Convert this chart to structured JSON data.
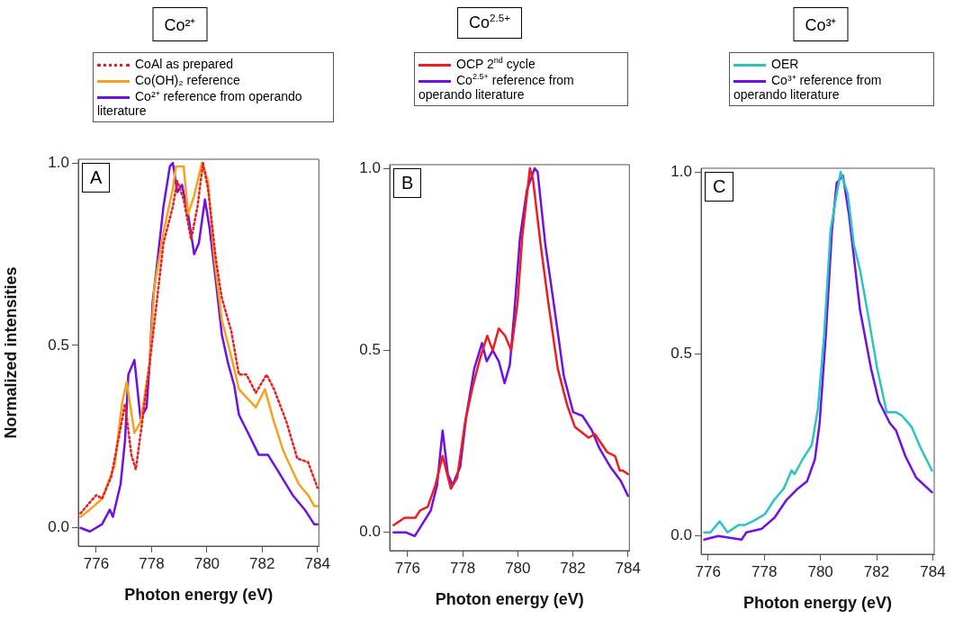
{
  "chart_data": [
    {
      "type": "line",
      "title": "Co²⁺",
      "xlabel": "Photon energy (eV)",
      "ylabel": "Normalized intensities",
      "annotations": [
        "A"
      ],
      "legend": "top",
      "grid": false,
      "marker": "none",
      "xlim": [
        775.35,
        784.05
      ],
      "ylim": [
        -0.05,
        1.01
      ],
      "xticks": [
        776,
        778,
        780,
        782,
        784
      ],
      "yticks": [
        {
          "value": 0,
          "label": "0.0"
        },
        {
          "value": 0.5,
          "label": "0.5"
        },
        {
          "value": 1,
          "label": "1.0"
        }
      ],
      "series": [
        {
          "name": "CoAl as prepared",
          "color": "#ee1c1c",
          "line_style": "dotted",
          "x": [
            775.43,
            776.0,
            776.21,
            776.54,
            776.82,
            777.04,
            777.27,
            777.43,
            777.66,
            777.93,
            778.16,
            778.43,
            778.77,
            778.93,
            779.16,
            779.43,
            779.66,
            779.86,
            780.04,
            780.32,
            780.54,
            780.88,
            781.16,
            781.43,
            781.77,
            782.16,
            782.43,
            782.88,
            783.27,
            783.66,
            784.0
          ],
          "values": [
            0.04,
            0.09,
            0.08,
            0.14,
            0.25,
            0.34,
            0.2,
            0.16,
            0.29,
            0.45,
            0.6,
            0.78,
            0.88,
            0.95,
            0.9,
            0.79,
            0.88,
            1.0,
            0.93,
            0.74,
            0.63,
            0.54,
            0.42,
            0.42,
            0.37,
            0.42,
            0.38,
            0.29,
            0.19,
            0.18,
            0.11
          ]
        },
        {
          "name": "Co(OH)₂ reference",
          "color": "#f7a21b",
          "line_style": "solid",
          "x": [
            775.43,
            775.77,
            776.21,
            776.66,
            776.93,
            777.1,
            777.38,
            777.6,
            777.93,
            778.1,
            778.43,
            778.77,
            778.88,
            779.16,
            779.32,
            779.54,
            779.82,
            780.04,
            780.27,
            780.54,
            780.88,
            781.16,
            781.77,
            782.1,
            782.43,
            782.77,
            783.32,
            783.66,
            783.88,
            784.0
          ],
          "values": [
            0.03,
            0.05,
            0.08,
            0.17,
            0.34,
            0.4,
            0.26,
            0.29,
            0.45,
            0.66,
            0.81,
            0.93,
            0.99,
            0.99,
            0.86,
            0.91,
            1.0,
            0.95,
            0.74,
            0.57,
            0.47,
            0.38,
            0.33,
            0.38,
            0.29,
            0.21,
            0.12,
            0.09,
            0.06,
            0.06
          ]
        },
        {
          "name": "Co²⁺ reference from operando literature",
          "color": "#6e10e6",
          "line_style": "solid",
          "x": [
            775.43,
            775.77,
            776.21,
            776.49,
            776.6,
            776.88,
            777.04,
            777.16,
            777.38,
            777.6,
            777.82,
            777.93,
            778.04,
            778.21,
            778.43,
            778.66,
            778.77,
            778.93,
            779.1,
            779.32,
            779.54,
            779.71,
            779.93,
            780.1,
            780.32,
            780.54,
            780.77,
            780.99,
            781.16,
            781.49,
            781.88,
            782.21,
            782.54,
            783.1,
            783.54,
            783.88,
            784.0
          ],
          "values": [
            0.0,
            -0.01,
            0.01,
            0.05,
            0.03,
            0.12,
            0.24,
            0.42,
            0.46,
            0.3,
            0.33,
            0.45,
            0.62,
            0.73,
            0.88,
            0.99,
            1.0,
            0.92,
            0.94,
            0.86,
            0.75,
            0.78,
            0.9,
            0.82,
            0.68,
            0.53,
            0.45,
            0.39,
            0.31,
            0.26,
            0.2,
            0.2,
            0.16,
            0.09,
            0.05,
            0.01,
            0.01
          ]
        }
      ]
    },
    {
      "type": "line",
      "title": "Co$^{2.5+}$",
      "xlabel": "Photon energy (eV)",
      "annotations": [
        "B"
      ],
      "legend": "top",
      "grid": false,
      "marker": "none",
      "xlim": [
        775.35,
        784.05
      ],
      "ylim": [
        -0.05,
        1.01
      ],
      "xticks": [
        776,
        778,
        780,
        782,
        784
      ],
      "yticks": [
        {
          "value": 0,
          "label": "0.0"
        },
        {
          "value": 0.5,
          "label": "0.5"
        },
        {
          "value": 1,
          "label": "1.0"
        }
      ],
      "series": [
        {
          "name": "OCP 2$^{nd}$ cycle",
          "color": "#ee1c1c",
          "line_style": "solid",
          "x": [
            775.49,
            775.89,
            776.28,
            776.45,
            776.73,
            777.01,
            777.27,
            777.57,
            777.8,
            778.08,
            778.36,
            778.64,
            778.89,
            779.09,
            779.31,
            779.54,
            779.76,
            779.99,
            780.16,
            780.44,
            780.55,
            780.83,
            781.11,
            781.45,
            781.79,
            782.07,
            782.57,
            782.8,
            783.25,
            783.53,
            783.7,
            783.81,
            784.0
          ],
          "values": [
            0.02,
            0.04,
            0.04,
            0.06,
            0.07,
            0.13,
            0.21,
            0.12,
            0.15,
            0.3,
            0.4,
            0.48,
            0.54,
            0.5,
            0.56,
            0.54,
            0.5,
            0.63,
            0.81,
            1.0,
            0.97,
            0.79,
            0.63,
            0.45,
            0.35,
            0.29,
            0.26,
            0.27,
            0.22,
            0.21,
            0.17,
            0.17,
            0.16
          ]
        },
        {
          "name": "Co$^{2.5+}$ reference from operando literature",
          "color": "#6e10e6",
          "line_style": "solid",
          "x": [
            775.49,
            775.94,
            776.26,
            776.51,
            776.84,
            777.07,
            777.27,
            777.46,
            777.63,
            777.91,
            778.13,
            778.42,
            778.7,
            778.87,
            779.09,
            779.31,
            779.52,
            779.71,
            779.88,
            780.08,
            780.33,
            780.61,
            780.72,
            781.0,
            781.34,
            781.67,
            782.01,
            782.35,
            782.69,
            782.97,
            783.36,
            783.75,
            784.0
          ],
          "values": [
            0.0,
            0.0,
            -0.01,
            0.02,
            0.06,
            0.13,
            0.28,
            0.16,
            0.13,
            0.18,
            0.32,
            0.45,
            0.52,
            0.47,
            0.5,
            0.47,
            0.41,
            0.46,
            0.61,
            0.81,
            0.94,
            1.0,
            0.99,
            0.79,
            0.61,
            0.43,
            0.33,
            0.32,
            0.28,
            0.23,
            0.18,
            0.14,
            0.1
          ]
        }
      ]
    },
    {
      "type": "line",
      "title": "Co³⁺",
      "xlabel": "Photon energy (eV)",
      "annotations": [
        "C"
      ],
      "legend": "top",
      "grid": false,
      "marker": "none",
      "xlim": [
        775.75,
        784.05
      ],
      "ylim": [
        -0.05,
        1.01
      ],
      "xticks": [
        776,
        778,
        780,
        782,
        784
      ],
      "yticks": [
        {
          "value": 0,
          "label": "0.0"
        },
        {
          "value": 0.5,
          "label": "0.5"
        },
        {
          "value": 1,
          "label": "1.0"
        }
      ],
      "series": [
        {
          "name": "OER",
          "color": "#2bc4c4",
          "line_style": "solid",
          "x": [
            775.86,
            776.08,
            776.41,
            776.69,
            777.08,
            777.3,
            777.58,
            778.02,
            778.36,
            778.69,
            778.97,
            779.08,
            779.36,
            779.69,
            779.91,
            780.13,
            780.36,
            780.58,
            780.72,
            780.97,
            781.19,
            781.41,
            781.69,
            782.02,
            782.36,
            782.69,
            782.91,
            783.24,
            783.58,
            783.97
          ],
          "values": [
            0.01,
            0.01,
            0.04,
            0.01,
            0.03,
            0.03,
            0.04,
            0.06,
            0.1,
            0.13,
            0.18,
            0.17,
            0.21,
            0.25,
            0.35,
            0.55,
            0.84,
            0.94,
            1.0,
            0.94,
            0.8,
            0.73,
            0.61,
            0.46,
            0.34,
            0.34,
            0.33,
            0.3,
            0.24,
            0.18
          ]
        },
        {
          "name": "Co³⁺ reference from operando literature",
          "color": "#6e10e6",
          "line_style": "solid",
          "x": [
            775.86,
            776.36,
            777.19,
            777.36,
            777.91,
            778.36,
            778.8,
            779.19,
            779.52,
            779.8,
            779.97,
            780.19,
            780.41,
            780.58,
            780.8,
            781.02,
            781.41,
            781.8,
            782.08,
            782.47,
            782.69,
            783.02,
            783.41,
            783.97
          ],
          "values": [
            -0.01,
            0.0,
            -0.01,
            0.01,
            0.02,
            0.05,
            0.1,
            0.13,
            0.15,
            0.21,
            0.31,
            0.55,
            0.84,
            0.97,
            0.99,
            0.88,
            0.62,
            0.46,
            0.37,
            0.31,
            0.29,
            0.22,
            0.16,
            0.12
          ]
        }
      ]
    }
  ]
}
